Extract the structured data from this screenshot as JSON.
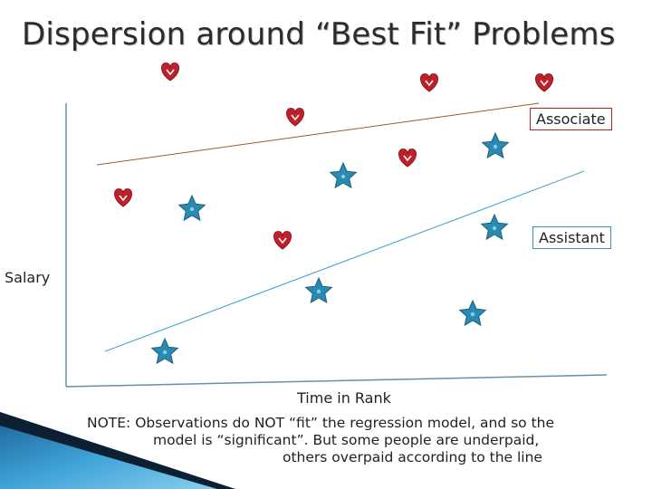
{
  "title": "Dispersion around “Best Fit” Problems",
  "legend": {
    "associate": "Associate",
    "assistant": "Assistant"
  },
  "axes": {
    "y_label": "Salary",
    "x_label": "Time in Rank"
  },
  "note": {
    "line1": "NOTE:  Observations do NOT “fit” the regression model, and so the",
    "line2": "model is “significant”.  But some people are underpaid,",
    "line3": "others overpaid according to the line"
  },
  "colors": {
    "associate_marker": "#c0202a",
    "associate_line": "#9c5a2a",
    "assistant_marker": "#2a8ab0",
    "assistant_line": "#3d9ed0",
    "axis": "#6a8faa",
    "corner_accent": "#2a7fbf"
  },
  "markers": {
    "associate": "heart-icon",
    "assistant": "star-icon"
  }
}
